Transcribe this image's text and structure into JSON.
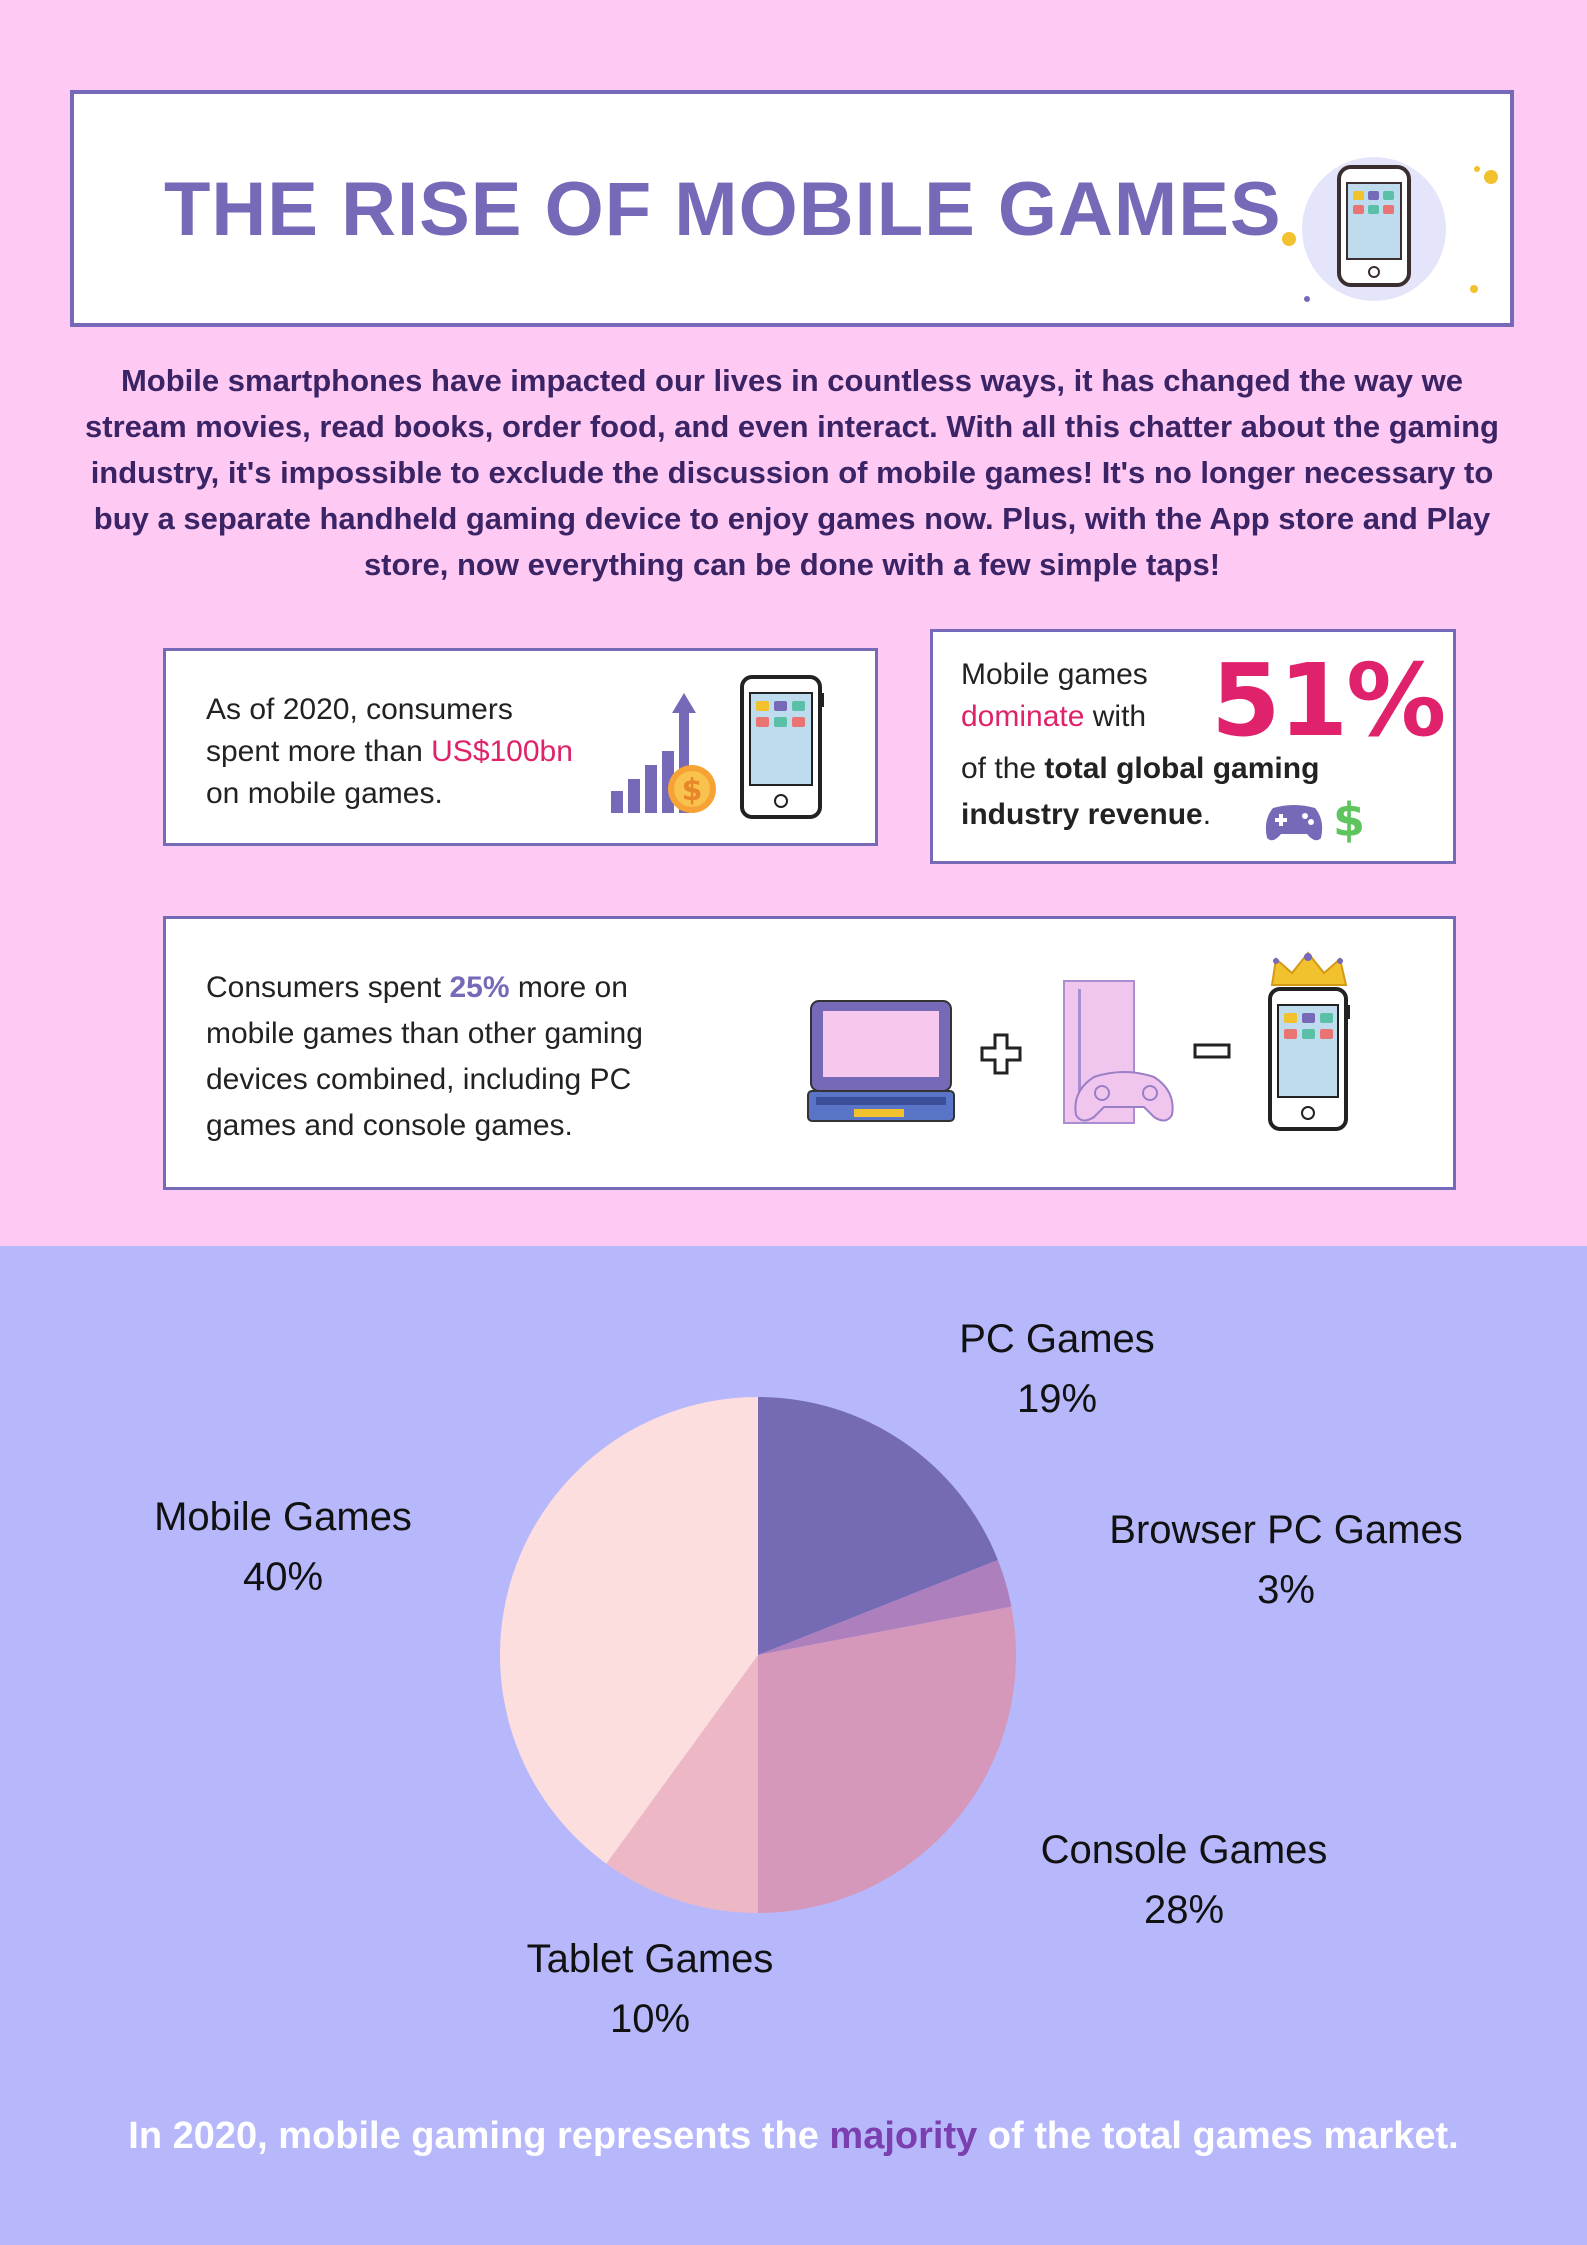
{
  "header": {
    "title": "THE RISE OF MOBILE GAMES"
  },
  "intro": {
    "text": "Mobile smartphones have impacted our lives in countless ways, it has changed the way we stream movies, read books, order food, and even interact. With all this chatter about the gaming industry, it's impossible to exclude the discussion of mobile games! It's no longer necessary to buy a separate handheld gaming device to enjoy games now. Plus, with the App store and Play store, now everything can be done with a few simple taps!"
  },
  "stat1": {
    "line1": "As of 2020, consumers",
    "line2_prefix": "spent more than ",
    "amount": "US$100bn",
    "line3": "on mobile games."
  },
  "stat2": {
    "line1": "Mobile games",
    "dominate": "dominate",
    "with": " with",
    "of_the": "of the ",
    "total": "total global gaming",
    "industry": "industry revenue",
    "period": ".",
    "percent": "51%"
  },
  "stat3": {
    "prefix": "Consumers spent ",
    "percent": "25%",
    "suffix": " more on",
    "line2": "mobile games than other gaming",
    "line3": "devices combined, including PC",
    "line4": "games and console games."
  },
  "chart_data": {
    "type": "pie",
    "categories": [
      "PC Games",
      "Browser PC Games",
      "Console Games",
      "Tablet Games",
      "Mobile Games"
    ],
    "values": [
      19,
      3,
      28,
      10,
      40
    ],
    "value_labels": [
      "19%",
      "3%",
      "28%",
      "10%",
      "40%"
    ],
    "colors": [
      "#756bb5",
      "#ae7fbd",
      "#d598ba",
      "#edb7c5",
      "#fddede"
    ],
    "start": "12 o'clock, clockwise"
  },
  "footer": {
    "prefix": "In 2020, mobile gaming represents the ",
    "highlight": "majority",
    "suffix": " of the total games market."
  },
  "colors": {
    "top_bg": "#fec9f2",
    "bottom_bg": "#b7b8fc",
    "accent_purple": "#7669b8",
    "accent_pink": "#e0216b"
  }
}
